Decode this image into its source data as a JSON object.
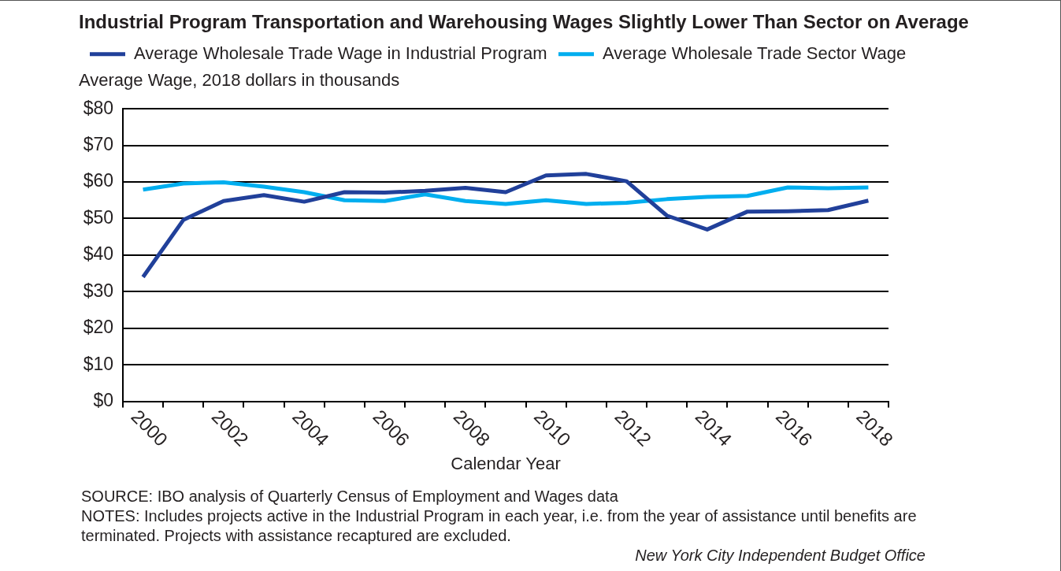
{
  "chart_data": {
    "type": "line",
    "title": "Industrial Program Transportation and Warehousing Wages Slightly Lower Than Sector on Average",
    "xlabel": "Calendar Year",
    "ylabel": "Average Wage, 2018 dollars in thousands",
    "categories": [
      "2000",
      null,
      "2002",
      null,
      "2004",
      null,
      "2006",
      null,
      "2008",
      null,
      "2010",
      null,
      "2012",
      null,
      "2014",
      null,
      "2016",
      null,
      "2018"
    ],
    "series": [
      {
        "name": "Average Wholesale Trade Wage in Industrial Program",
        "color": "#21409a",
        "values": [
          34.0,
          49.6,
          54.8,
          56.4,
          54.6,
          57.2,
          57.1,
          57.6,
          58.4,
          57.2,
          61.8,
          62.2,
          60.2,
          50.8,
          47.0,
          51.9,
          52.0,
          52.3,
          54.9
        ]
      },
      {
        "name": "Average Wholesale Trade Sector Wage",
        "color": "#00aeef",
        "values": [
          57.9,
          59.6,
          59.9,
          58.7,
          57.2,
          55.0,
          54.8,
          56.6,
          54.8,
          54.0,
          55.0,
          54.0,
          54.3,
          55.3,
          55.9,
          56.2,
          58.5,
          58.3,
          58.5
        ]
      }
    ],
    "ylim": [
      0,
      80
    ],
    "yticks": [
      {
        "value": 0,
        "label": "$0"
      },
      {
        "value": 10,
        "label": "$10"
      },
      {
        "value": 20,
        "label": "$20"
      },
      {
        "value": 30,
        "label": "$30"
      },
      {
        "value": 40,
        "label": "$40"
      },
      {
        "value": 50,
        "label": "$50"
      },
      {
        "value": 60,
        "label": "$60"
      },
      {
        "value": 70,
        "label": "$70"
      },
      {
        "value": 80,
        "label": "$80"
      }
    ],
    "grid": "y",
    "legend": "top",
    "marker": "none",
    "line_style": "solid",
    "annotations": [
      "SOURCE: IBO analysis of Quarterly Census of Employment and Wages data",
      "NOTES: Includes projects active in the Industrial Program in each year, i.e. from the year of assistance until benefits are terminated. Projects with assistance recaptured are excluded.",
      "New York City Independent Budget Office"
    ]
  }
}
